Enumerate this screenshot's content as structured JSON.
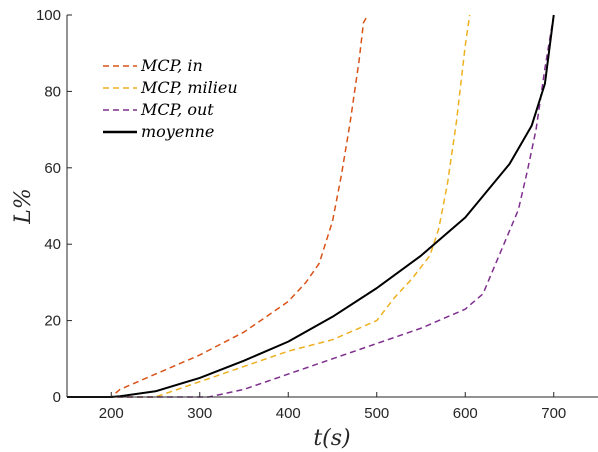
{
  "chart_data": {
    "type": "line",
    "xlabel": "t(s)",
    "ylabel": "L%",
    "xlim": [
      150,
      750
    ],
    "ylim": [
      0,
      100
    ],
    "xticks": [
      "200",
      "300",
      "400",
      "500",
      "600",
      "700"
    ],
    "yticks": [
      "0",
      "20",
      "40",
      "60",
      "80",
      "100"
    ],
    "grid": false,
    "legend_position": "top-left",
    "series": [
      {
        "name": "MCP, in",
        "style": "dashed",
        "color": "#D95319",
        "x": [
          150,
          200,
          210,
          250,
          300,
          350,
          400,
          420,
          435,
          450,
          460,
          470,
          480,
          485,
          490
        ],
        "y": [
          0,
          0,
          2,
          6,
          11,
          17,
          25,
          30,
          35,
          46,
          58,
          72,
          88,
          98,
          100
        ]
      },
      {
        "name": "MCP, milieu",
        "style": "dashed",
        "color": "#EDB120",
        "x": [
          150,
          250,
          300,
          350,
          400,
          450,
          500,
          520,
          540,
          560,
          570,
          580,
          590,
          600,
          605
        ],
        "y": [
          0,
          0,
          4,
          8,
          12,
          15,
          20,
          26,
          31,
          37,
          44,
          56,
          72,
          92,
          100
        ]
      },
      {
        "name": "MCP, out",
        "style": "dashed",
        "color": "#7E2F8E",
        "x": [
          150,
          310,
          350,
          400,
          450,
          500,
          550,
          600,
          620,
          640,
          660,
          670,
          680,
          690,
          700
        ],
        "y": [
          0,
          0,
          2,
          6,
          10,
          14,
          18,
          23,
          27,
          38,
          49,
          59,
          70,
          86,
          100
        ]
      },
      {
        "name": "moyenne",
        "style": "solid",
        "color": "#000000",
        "x": [
          150,
          200,
          210,
          250,
          300,
          350,
          400,
          450,
          500,
          550,
          600,
          650,
          675,
          690,
          700
        ],
        "y": [
          0,
          0,
          0.2,
          1.5,
          5,
          9.5,
          14.5,
          21,
          28.5,
          37,
          47,
          61,
          71,
          82,
          100
        ]
      }
    ]
  }
}
